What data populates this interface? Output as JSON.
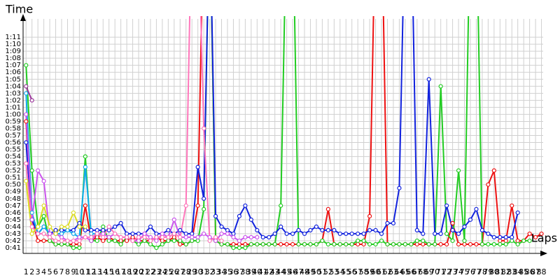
{
  "chart_data": {
    "type": "line",
    "y_label": "Time",
    "x_label": "Laps",
    "x": [
      1,
      2,
      3,
      4,
      5,
      6,
      7,
      8,
      9,
      10,
      11,
      12,
      13,
      14,
      15,
      16,
      17,
      18,
      19,
      20,
      21,
      22,
      23,
      24,
      25,
      26,
      27,
      28,
      29,
      30,
      31,
      32,
      33,
      34,
      35,
      36,
      37,
      38,
      39,
      40,
      41,
      42,
      43,
      44,
      45,
      46,
      47,
      48,
      49,
      50,
      51,
      52,
      53,
      54,
      55,
      56,
      57,
      58,
      59,
      60,
      61,
      62,
      63,
      64,
      65,
      66,
      67,
      68,
      69,
      70,
      71,
      72,
      73,
      74,
      75,
      76,
      77,
      78,
      79,
      80,
      81,
      82,
      83,
      84,
      85,
      86,
      87,
      88
    ],
    "xlim": [
      0.5,
      89
    ],
    "ylim": [
      40.2,
      74
    ],
    "yticks": [
      {
        "value": 41,
        "label": "0:41"
      },
      {
        "value": 42,
        "label": "0:42"
      },
      {
        "value": 43,
        "label": "0:43"
      },
      {
        "value": 44,
        "label": "0:44"
      },
      {
        "value": 45,
        "label": "0:45"
      },
      {
        "value": 46,
        "label": "0:46"
      },
      {
        "value": 47,
        "label": "0:47"
      },
      {
        "value": 48,
        "label": "0:48"
      },
      {
        "value": 49,
        "label": "0:49"
      },
      {
        "value": 50,
        "label": "0:50"
      },
      {
        "value": 51,
        "label": "0:51"
      },
      {
        "value": 52,
        "label": "0:52"
      },
      {
        "value": 53,
        "label": "0:53"
      },
      {
        "value": 54,
        "label": "0:54"
      },
      {
        "value": 55,
        "label": "0:55"
      },
      {
        "value": 56,
        "label": "0:56"
      },
      {
        "value": 57,
        "label": "0:57"
      },
      {
        "value": 58,
        "label": "0:58"
      },
      {
        "value": 59,
        "label": "0:59"
      },
      {
        "value": 60,
        "label": "1:00"
      },
      {
        "value": 61,
        "label": "1:01"
      },
      {
        "value": 62,
        "label": "1:02"
      },
      {
        "value": 63,
        "label": "1:03"
      },
      {
        "value": 64,
        "label": "1:04"
      },
      {
        "value": 65,
        "label": "1:05"
      },
      {
        "value": 66,
        "label": "1:06"
      },
      {
        "value": 67,
        "label": "1:07"
      },
      {
        "value": 68,
        "label": "1:08"
      },
      {
        "value": 69,
        "label": "1:09"
      },
      {
        "value": 70,
        "label": "1:10"
      },
      {
        "value": 71,
        "label": "1:11"
      }
    ],
    "grid": true,
    "series": [
      {
        "color": "#ee1111",
        "values": [
          59,
          45,
          42,
          42,
          42,
          41.5,
          41.5,
          41.5,
          41.5,
          41.5,
          47,
          42,
          42.5,
          42,
          42.5,
          42,
          42,
          42,
          42.5,
          42,
          42,
          42,
          42.5,
          42,
          42,
          42.5,
          41.5,
          41.5,
          42,
          47,
          90,
          90,
          42,
          41.5,
          41.5,
          41.5,
          41.5,
          41.5,
          41.5,
          41.5,
          41.5,
          41.5,
          41.5,
          41.5,
          41.5,
          41.5,
          41.5,
          41.5,
          41.5,
          41.5,
          42,
          46.5,
          41.5,
          41.5,
          41.5,
          41.5,
          41.5,
          41.5,
          45.5,
          90,
          90,
          41.5,
          41.5,
          41.5,
          41.5,
          41.5,
          41.5,
          41.5,
          41.5,
          41.5,
          41.5,
          41.5,
          44.5,
          41.5,
          41.5,
          41.5,
          41.5,
          41.5,
          50,
          52,
          42,
          42,
          47,
          42,
          42,
          43,
          42.5,
          43
        ]
      },
      {
        "color": "#22cc22",
        "values": [
          67,
          52,
          44,
          45.5,
          42,
          41.5,
          41.5,
          41.5,
          41,
          41,
          54,
          42,
          42,
          44,
          42,
          42,
          41.5,
          42.5,
          42,
          41.5,
          42,
          41.5,
          41,
          41.5,
          42,
          42,
          42,
          41.5,
          42,
          42,
          46.5,
          90,
          42,
          41.5,
          41.5,
          41,
          41,
          41,
          41.5,
          41.5,
          41.5,
          41.5,
          41.5,
          47,
          90,
          90,
          41.5,
          41.5,
          41.5,
          41.5,
          42,
          41.5,
          41.5,
          41.5,
          41.5,
          41.5,
          42,
          42,
          41.5,
          41.5,
          42,
          41.5,
          41.5,
          41.5,
          41.5,
          41.5,
          42,
          42,
          41.5,
          41.5,
          64,
          43,
          42,
          52,
          42,
          90,
          90,
          41.5,
          41.5,
          41.5,
          41.5,
          41.5,
          42,
          41.5,
          42,
          42,
          null,
          null
        ]
      },
      {
        "color": "#1122dd",
        "values": [
          56,
          45,
          43,
          44,
          43,
          43.5,
          43.5,
          43.5,
          43.5,
          44.5,
          43.5,
          43.5,
          43.5,
          43.5,
          43.5,
          44,
          44.5,
          43,
          43,
          43,
          43,
          44,
          43,
          43,
          43.5,
          43,
          43.5,
          43,
          43,
          52.5,
          48,
          90,
          45.5,
          44,
          43.5,
          43,
          45.5,
          47,
          45,
          43.5,
          42.5,
          42.5,
          43,
          44,
          43,
          43,
          43.5,
          43,
          43.5,
          44,
          43.5,
          43.5,
          43.5,
          43,
          43,
          43,
          43,
          43,
          43.5,
          43.5,
          43,
          44.5,
          44.5,
          49.5,
          90,
          90,
          43.5,
          43,
          65,
          43,
          43,
          47,
          43.5,
          43,
          44,
          45,
          46.5,
          43.5,
          43,
          42.5,
          42.5,
          42.5,
          42.5,
          46,
          null,
          null,
          null,
          null
        ]
      },
      {
        "color": "#11aaee",
        "values": [
          63,
          46,
          43,
          44,
          43,
          43,
          43,
          43.5,
          43,
          42.5,
          52.5,
          43,
          43,
          null,
          null,
          null,
          null,
          null,
          null,
          null,
          null,
          null,
          null,
          null,
          null,
          null,
          null,
          null,
          null,
          null,
          null,
          null,
          null,
          null,
          null,
          null,
          null,
          null,
          null,
          null,
          null,
          null,
          null,
          null,
          null,
          null,
          null,
          null,
          null,
          null,
          null,
          null,
          null,
          null,
          null,
          null,
          null,
          null,
          null,
          null,
          null,
          null,
          null,
          null,
          null,
          null,
          null,
          null,
          null,
          null,
          null,
          null,
          null,
          null,
          null,
          null,
          null,
          null,
          null,
          null,
          null,
          null,
          null,
          null,
          null,
          null,
          null,
          null
        ]
      },
      {
        "color": "#993399",
        "values": [
          64,
          62,
          null,
          null,
          null,
          null,
          null,
          null,
          null,
          null,
          null,
          null,
          null,
          null,
          null,
          null,
          null,
          null,
          null,
          null,
          null,
          null,
          null,
          null,
          null,
          null,
          null,
          null,
          null,
          null,
          null,
          null,
          null,
          null,
          null,
          null,
          null,
          null,
          null,
          null,
          null,
          null,
          null,
          null,
          null,
          null,
          null,
          null,
          null,
          null,
          null,
          null,
          null,
          null,
          null,
          null,
          null,
          null,
          null,
          null,
          null,
          null,
          null,
          null,
          null,
          null,
          null,
          null,
          null,
          null,
          null,
          null,
          null,
          null,
          null,
          null,
          null,
          null,
          null,
          null,
          null,
          null,
          null,
          null,
          null,
          null,
          null,
          null
        ]
      },
      {
        "color": "#cc55ee",
        "values": [
          60,
          45,
          52,
          50.5,
          43,
          43,
          42.5,
          42,
          42,
          42.5,
          42.5,
          42,
          43,
          43,
          42.5,
          43,
          42.5,
          42.5,
          42,
          42,
          43,
          42.5,
          42,
          43,
          42.5,
          45,
          42.5,
          42.5,
          42.5,
          42.5,
          43,
          42.5,
          42,
          43,
          43,
          42.5,
          42,
          42.5,
          42.5,
          42.5,
          null,
          null,
          null,
          null,
          null,
          null,
          null,
          null,
          null,
          null,
          null,
          null,
          null,
          null,
          null,
          null,
          null,
          null,
          null,
          null,
          null,
          null,
          null,
          null,
          null,
          null,
          null,
          null,
          null,
          null,
          null,
          null,
          null,
          null,
          null,
          null,
          null,
          null,
          null,
          null,
          null,
          null,
          null,
          null,
          null,
          null,
          null,
          null
        ]
      },
      {
        "color": "#ff77bb",
        "values": [
          53,
          44,
          43,
          43,
          42.5,
          42,
          42,
          42,
          42,
          42,
          42.5,
          42.5,
          43,
          42.5,
          44,
          43,
          42.5,
          42.5,
          42,
          42.5,
          42.5,
          42,
          42.5,
          42.5,
          42.5,
          43,
          42.5,
          47,
          90,
          90,
          58,
          42,
          42.5,
          42,
          null,
          null,
          null,
          null,
          null,
          null,
          null,
          null,
          null,
          null,
          null,
          null,
          null,
          null,
          null,
          null,
          null,
          null,
          null,
          null,
          null,
          null,
          null,
          null,
          null,
          null,
          null,
          null,
          null,
          null,
          null,
          null,
          null,
          null,
          null,
          null,
          null,
          null,
          null,
          null,
          null,
          null,
          null,
          null,
          null,
          null,
          null,
          null,
          null,
          null,
          null,
          null,
          null,
          null
        ]
      },
      {
        "color": "#dddd22",
        "values": [
          50.5,
          43,
          44,
          47,
          44,
          43,
          44,
          44,
          46,
          44,
          44,
          null,
          null,
          null,
          null,
          null,
          null,
          null,
          null,
          null,
          null,
          null,
          null,
          null,
          null,
          null,
          null,
          null,
          null,
          null,
          null,
          null,
          null,
          null,
          null,
          null,
          null,
          null,
          null,
          null,
          null,
          null,
          null,
          null,
          null,
          null,
          null,
          null,
          null,
          null,
          null,
          null,
          null,
          null,
          null,
          null,
          null,
          null,
          null,
          null,
          null,
          null,
          null,
          null,
          null,
          null,
          null,
          null,
          null,
          null,
          null,
          null,
          null,
          null,
          null,
          null,
          null,
          null,
          null,
          null,
          null,
          null,
          null,
          null,
          null,
          null,
          null,
          null
        ]
      }
    ]
  }
}
